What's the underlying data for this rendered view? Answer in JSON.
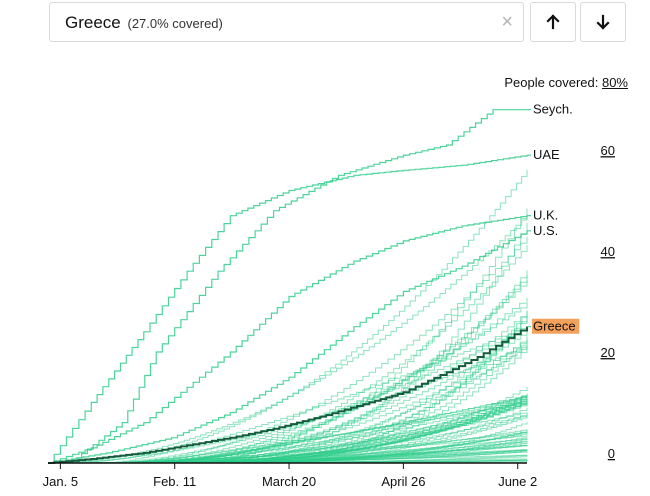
{
  "search": {
    "country": "Greece",
    "coverage_text": "(27.0% covered)",
    "clear_symbol": "×"
  },
  "coverage_header": {
    "label": "People covered:",
    "value": "80%"
  },
  "chart_data": {
    "type": "line",
    "x_ticks": [
      "Jan. 5",
      "Feb. 11",
      "March 20",
      "April 26",
      "June 2"
    ],
    "y_ticks": [
      0,
      20,
      40,
      60
    ],
    "x_range": [
      "2021-01-01",
      "2021-06-05"
    ],
    "ylim": [
      0,
      64
    ],
    "highlight_color": "#f4a25b",
    "line_color": "#2ecc8a",
    "highlight_series": "Greece",
    "series": [
      {
        "name": "Seych.",
        "x": [
          "2021-01-10",
          "2021-01-25",
          "2021-02-05",
          "2021-02-25",
          "2021-03-15",
          "2021-04-05",
          "2021-04-26",
          "2021-05-10",
          "2021-05-25",
          "2021-06-05"
        ],
        "values": [
          1,
          8,
          22,
          38,
          50,
          57,
          61,
          63,
          70,
          70
        ]
      },
      {
        "name": "UAE",
        "x": [
          "2021-01-01",
          "2021-01-15",
          "2021-02-01",
          "2021-02-15",
          "2021-03-01",
          "2021-03-20",
          "2021-04-10",
          "2021-04-26",
          "2021-05-15",
          "2021-06-05"
        ],
        "values": [
          0,
          12,
          26,
          38,
          49,
          54,
          57,
          58,
          59,
          61
        ]
      },
      {
        "name": "U.K.",
        "x": [
          "2021-01-01",
          "2021-01-15",
          "2021-02-01",
          "2021-02-15",
          "2021-03-01",
          "2021-03-20",
          "2021-04-10",
          "2021-04-26",
          "2021-05-15",
          "2021-06-05"
        ],
        "values": [
          0,
          3,
          8,
          15,
          22,
          33,
          40,
          44,
          47,
          49
        ]
      },
      {
        "name": "U.S.",
        "x": [
          "2021-01-01",
          "2021-01-20",
          "2021-02-10",
          "2021-03-01",
          "2021-03-20",
          "2021-04-10",
          "2021-04-26",
          "2021-05-15",
          "2021-06-05"
        ],
        "values": [
          0,
          2,
          5,
          10,
          17,
          27,
          34,
          39,
          46
        ]
      },
      {
        "name": "Greece",
        "x": [
          "2021-01-01",
          "2021-01-15",
          "2021-02-01",
          "2021-02-15",
          "2021-03-01",
          "2021-03-15",
          "2021-04-01",
          "2021-04-15",
          "2021-04-26",
          "2021-05-10",
          "2021-05-20",
          "2021-06-05"
        ],
        "values": [
          0,
          0.8,
          2,
          3.5,
          5,
          6.8,
          9.5,
          12,
          14,
          18,
          21,
          27
        ]
      }
    ]
  }
}
